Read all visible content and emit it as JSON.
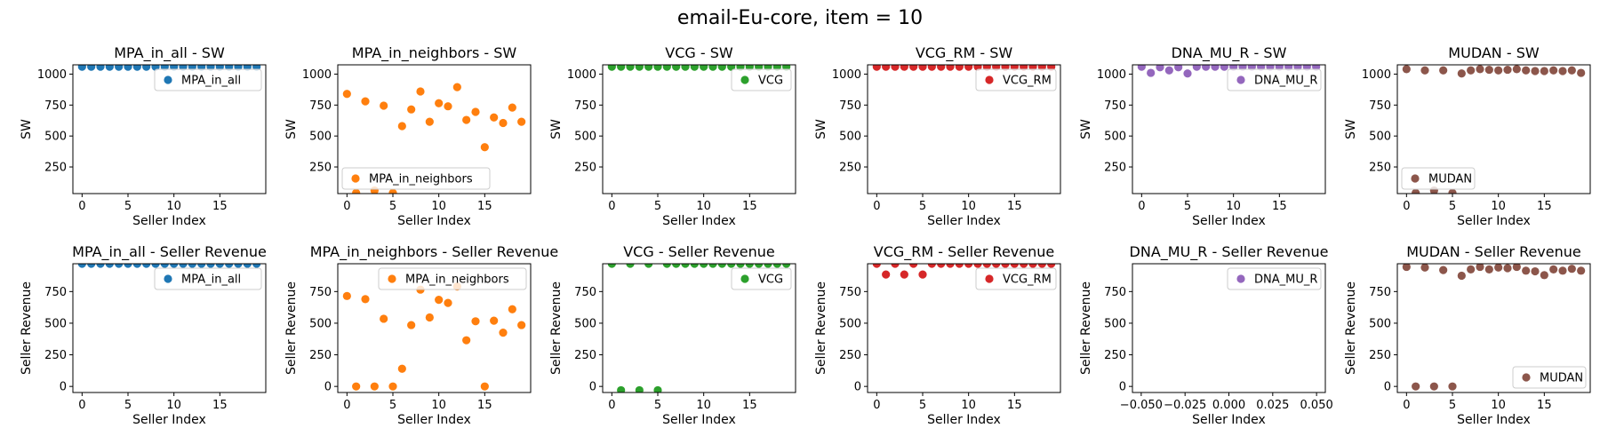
{
  "figure": {
    "title": "email-Eu-core, item = 10"
  },
  "chart_data": [
    {
      "type": "scatter",
      "title": "MPA_in_all - SW",
      "xlabel": "Seller Index",
      "ylabel": "SW",
      "series": [
        {
          "name": "MPA_in_all",
          "color": "#1f77b4",
          "x": [
            0,
            1,
            2,
            3,
            4,
            5,
            6,
            7,
            8,
            9,
            10,
            11,
            12,
            13,
            14,
            15,
            16,
            17,
            18,
            19
          ],
          "y": [
            1060,
            1060,
            1060,
            1060,
            1060,
            1060,
            1060,
            1060,
            1060,
            1060,
            1060,
            1060,
            1060,
            1060,
            1060,
            1060,
            1060,
            1060,
            1060,
            1060
          ]
        }
      ],
      "xlim": [
        -1,
        20
      ],
      "ylim": [
        35,
        1075
      ],
      "xticks": [
        0,
        5,
        10,
        15
      ],
      "yticks": [
        250,
        500,
        750,
        1000
      ],
      "legend": "upper right"
    },
    {
      "type": "scatter",
      "title": "MPA_in_neighbors - SW",
      "xlabel": "Seller Index",
      "ylabel": "SW",
      "series": [
        {
          "name": "MPA_in_neighbors",
          "color": "#ff7f0e",
          "x": [
            0,
            1,
            2,
            3,
            4,
            5,
            6,
            7,
            8,
            9,
            10,
            11,
            12,
            13,
            14,
            15,
            16,
            17,
            18,
            19
          ],
          "y": [
            840,
            40,
            780,
            60,
            745,
            40,
            580,
            715,
            860,
            615,
            765,
            740,
            895,
            630,
            695,
            410,
            650,
            605,
            730,
            615
          ]
        }
      ],
      "xlim": [
        -1,
        20
      ],
      "ylim": [
        35,
        1075
      ],
      "xticks": [
        0,
        5,
        10,
        15
      ],
      "yticks": [
        250,
        500,
        750,
        1000
      ],
      "legend": "lower left"
    },
    {
      "type": "scatter",
      "title": "VCG - SW",
      "xlabel": "Seller Index",
      "ylabel": "SW",
      "series": [
        {
          "name": "VCG",
          "color": "#2ca02c",
          "x": [
            0,
            1,
            2,
            3,
            4,
            5,
            6,
            7,
            8,
            9,
            10,
            11,
            12,
            13,
            14,
            15,
            16,
            17,
            18,
            19
          ],
          "y": [
            1060,
            1060,
            1060,
            1060,
            1060,
            1060,
            1060,
            1060,
            1060,
            1060,
            1060,
            1060,
            1060,
            1060,
            1060,
            1060,
            1060,
            1060,
            1060,
            1060
          ]
        }
      ],
      "xlim": [
        -1,
        20
      ],
      "ylim": [
        35,
        1075
      ],
      "xticks": [
        0,
        5,
        10,
        15
      ],
      "yticks": [
        250,
        500,
        750,
        1000
      ],
      "legend": "upper right"
    },
    {
      "type": "scatter",
      "title": "VCG_RM - SW",
      "xlabel": "Seller Index",
      "ylabel": "SW",
      "series": [
        {
          "name": "VCG_RM",
          "color": "#d62728",
          "x": [
            0,
            1,
            2,
            3,
            4,
            5,
            6,
            7,
            8,
            9,
            10,
            11,
            12,
            13,
            14,
            15,
            16,
            17,
            18,
            19
          ],
          "y": [
            1060,
            1060,
            1060,
            1060,
            1060,
            1060,
            1060,
            1060,
            1060,
            1060,
            1060,
            1060,
            1060,
            1060,
            1060,
            1060,
            1060,
            1060,
            1060,
            1060
          ]
        }
      ],
      "xlim": [
        -1,
        20
      ],
      "ylim": [
        35,
        1075
      ],
      "xticks": [
        0,
        5,
        10,
        15
      ],
      "yticks": [
        250,
        500,
        750,
        1000
      ],
      "legend": "upper right"
    },
    {
      "type": "scatter",
      "title": "DNA_MU_R - SW",
      "xlabel": "Seller Index",
      "ylabel": "SW",
      "series": [
        {
          "name": "DNA_MU_R",
          "color": "#9467bd",
          "x": [
            0,
            1,
            2,
            3,
            4,
            5,
            6,
            7,
            8,
            9,
            10,
            11,
            12,
            13,
            14,
            15,
            16,
            17,
            18,
            19
          ],
          "y": [
            1060,
            1010,
            1055,
            1030,
            1055,
            1005,
            1060,
            1060,
            1060,
            1060,
            1060,
            1060,
            1060,
            1060,
            1060,
            1060,
            1060,
            1060,
            1060,
            1060
          ]
        }
      ],
      "xlim": [
        -1,
        20
      ],
      "ylim": [
        35,
        1075
      ],
      "xticks": [
        0,
        5,
        10,
        15
      ],
      "yticks": [
        250,
        500,
        750,
        1000
      ],
      "legend": "upper right"
    },
    {
      "type": "scatter",
      "title": "MUDAN - SW",
      "xlabel": "Seller Index",
      "ylabel": "SW",
      "series": [
        {
          "name": "MUDAN",
          "color": "#8c564b",
          "x": [
            0,
            1,
            2,
            3,
            4,
            5,
            6,
            7,
            8,
            9,
            10,
            11,
            12,
            13,
            14,
            15,
            16,
            17,
            18,
            19
          ],
          "y": [
            1040,
            40,
            1030,
            60,
            1030,
            40,
            1005,
            1030,
            1040,
            1035,
            1030,
            1035,
            1040,
            1030,
            1025,
            1025,
            1030,
            1025,
            1030,
            1010
          ]
        }
      ],
      "xlim": [
        -1,
        20
      ],
      "ylim": [
        35,
        1075
      ],
      "xticks": [
        0,
        5,
        10,
        15
      ],
      "yticks": [
        250,
        500,
        750,
        1000
      ],
      "legend": "lower left"
    },
    {
      "type": "scatter",
      "title": "MPA_in_all - Seller Revenue",
      "xlabel": "Seller Index",
      "ylabel": "Seller Revenue",
      "series": [
        {
          "name": "MPA_in_all",
          "color": "#1f77b4",
          "x": [
            0,
            1,
            2,
            3,
            4,
            5,
            6,
            7,
            8,
            9,
            10,
            11,
            12,
            13,
            14,
            15,
            16,
            17,
            18,
            19
          ],
          "y": [
            970,
            970,
            970,
            970,
            970,
            970,
            970,
            970,
            970,
            970,
            970,
            970,
            970,
            970,
            970,
            970,
            970,
            970,
            970,
            970
          ]
        }
      ],
      "xlim": [
        -1,
        20
      ],
      "ylim": [
        -48,
        970
      ],
      "xticks": [
        0,
        5,
        10,
        15
      ],
      "yticks": [
        0,
        250,
        500,
        750
      ],
      "legend": "upper right"
    },
    {
      "type": "scatter",
      "title": "MPA_in_neighbors - Seller Revenue",
      "xlabel": "Seller Index",
      "ylabel": "Seller Revenue",
      "series": [
        {
          "name": "MPA_in_neighbors",
          "color": "#ff7f0e",
          "x": [
            0,
            1,
            2,
            3,
            4,
            5,
            6,
            7,
            8,
            9,
            10,
            11,
            12,
            13,
            14,
            15,
            16,
            17,
            18,
            19
          ],
          "y": [
            715,
            0,
            690,
            0,
            535,
            0,
            140,
            485,
            765,
            545,
            685,
            660,
            790,
            365,
            515,
            0,
            520,
            425,
            610,
            485
          ]
        }
      ],
      "xlim": [
        -1,
        20
      ],
      "ylim": [
        -48,
        970
      ],
      "xticks": [
        0,
        5,
        10,
        15
      ],
      "yticks": [
        0,
        250,
        500,
        750
      ],
      "legend": "upper right"
    },
    {
      "type": "scatter",
      "title": "VCG - Seller Revenue",
      "xlabel": "Seller Index",
      "ylabel": "Seller Revenue",
      "series": [
        {
          "name": "VCG",
          "color": "#2ca02c",
          "x": [
            0,
            1,
            2,
            3,
            4,
            5,
            6,
            7,
            8,
            9,
            10,
            11,
            12,
            13,
            14,
            15,
            16,
            17,
            18,
            19
          ],
          "y": [
            970,
            -30,
            970,
            -30,
            970,
            -30,
            970,
            970,
            970,
            970,
            970,
            970,
            970,
            970,
            970,
            970,
            970,
            970,
            970,
            970
          ]
        }
      ],
      "xlim": [
        -1,
        20
      ],
      "ylim": [
        -48,
        970
      ],
      "xticks": [
        0,
        5,
        10,
        15
      ],
      "yticks": [
        0,
        250,
        500,
        750
      ],
      "legend": "upper right"
    },
    {
      "type": "scatter",
      "title": "VCG_RM - Seller Revenue",
      "xlabel": "Seller Index",
      "ylabel": "Seller Revenue",
      "series": [
        {
          "name": "VCG_RM",
          "color": "#d62728",
          "x": [
            0,
            1,
            2,
            3,
            4,
            5,
            6,
            7,
            8,
            9,
            10,
            11,
            12,
            13,
            14,
            15,
            16,
            17,
            18,
            19
          ],
          "y": [
            970,
            885,
            970,
            885,
            970,
            885,
            970,
            970,
            970,
            970,
            970,
            970,
            970,
            970,
            970,
            970,
            970,
            970,
            970,
            970
          ]
        }
      ],
      "xlim": [
        -1,
        20
      ],
      "ylim": [
        -48,
        970
      ],
      "xticks": [
        0,
        5,
        10,
        15
      ],
      "yticks": [
        0,
        250,
        500,
        750
      ],
      "legend": "upper right"
    },
    {
      "type": "scatter",
      "title": "DNA_MU_R - Seller Revenue",
      "xlabel": "Seller Index",
      "ylabel": "Seller Revenue",
      "series": [
        {
          "name": "DNA_MU_R",
          "color": "#9467bd",
          "x": [],
          "y": []
        }
      ],
      "xlim": [
        -0.055,
        0.055
      ],
      "ylim": [
        -48,
        970
      ],
      "xticks": [
        -0.05,
        -0.025,
        0,
        0.025,
        0.05
      ],
      "xticklabels": [
        "−0.050",
        "−0.025",
        "0.000",
        "0.025",
        "0.050"
      ],
      "yticks": [
        0,
        250,
        500,
        750
      ],
      "legend": "upper right"
    },
    {
      "type": "scatter",
      "title": "MUDAN - Seller Revenue",
      "xlabel": "Seller Index",
      "ylabel": "Seller Revenue",
      "series": [
        {
          "name": "MUDAN",
          "color": "#8c564b",
          "x": [
            0,
            1,
            2,
            3,
            4,
            5,
            6,
            7,
            8,
            9,
            10,
            11,
            12,
            13,
            14,
            15,
            16,
            17,
            18,
            19
          ],
          "y": [
            945,
            0,
            940,
            0,
            920,
            0,
            875,
            925,
            945,
            925,
            940,
            935,
            945,
            915,
            910,
            880,
            925,
            915,
            930,
            915
          ]
        }
      ],
      "xlim": [
        -1,
        20
      ],
      "ylim": [
        -48,
        970
      ],
      "xticks": [
        0,
        5,
        10,
        15
      ],
      "yticks": [
        0,
        250,
        500,
        750
      ],
      "legend": "lower right"
    }
  ]
}
